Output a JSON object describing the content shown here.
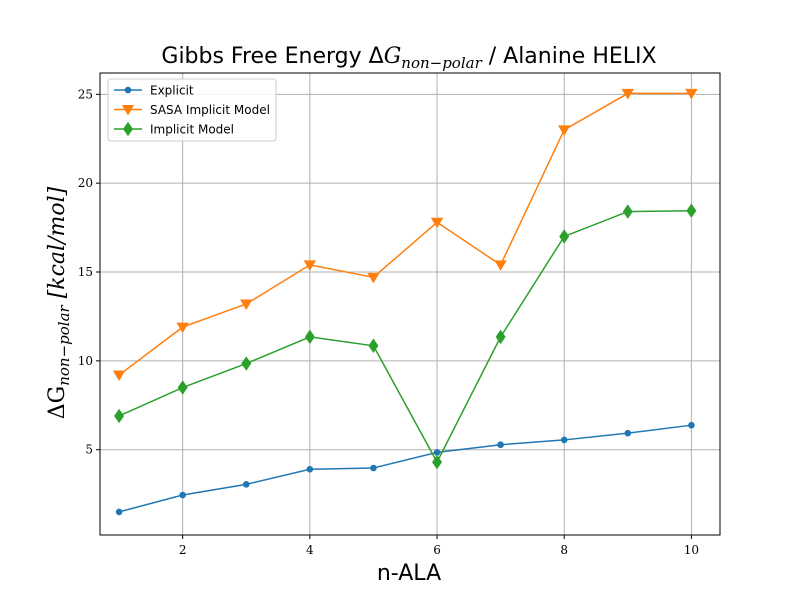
{
  "chart_data": {
    "type": "line",
    "title": {
      "prefix": "Gibbs Free Energy ",
      "delta": "Δ",
      "symbol": "G",
      "subscript": "non−polar",
      "suffix": " / Alanine HELIX"
    },
    "xlabel": "n-ALA",
    "ylabel": {
      "delta": "ΔG",
      "subscript": "non−polar",
      "units": " [kcal/mol]"
    },
    "xlim": [
      0.7,
      10.45
    ],
    "ylim": [
      0.2,
      26.2
    ],
    "xticks": [
      2,
      4,
      6,
      8,
      10
    ],
    "yticks": [
      5,
      10,
      15,
      20,
      25
    ],
    "grid": true,
    "legend_position": "top-left",
    "x": [
      1,
      2,
      3,
      4,
      5,
      6,
      7,
      8,
      9,
      10
    ],
    "series": [
      {
        "name": "Explicit",
        "color": "#1f77b4",
        "marker": "circle",
        "values": [
          1.5,
          2.45,
          3.05,
          3.9,
          3.97,
          4.85,
          5.28,
          5.55,
          5.93,
          6.38
        ]
      },
      {
        "name": "SASA Implicit Model",
        "color": "#ff7f0e",
        "marker": "triangle-down",
        "values": [
          9.2,
          11.9,
          13.2,
          15.4,
          14.7,
          17.8,
          15.4,
          23.0,
          25.05,
          25.05
        ]
      },
      {
        "name": "Implicit Model",
        "color": "#2ca02c",
        "marker": "diamond",
        "values": [
          6.9,
          8.5,
          9.85,
          11.35,
          10.85,
          4.3,
          11.35,
          17.0,
          18.4,
          18.45
        ]
      }
    ]
  }
}
